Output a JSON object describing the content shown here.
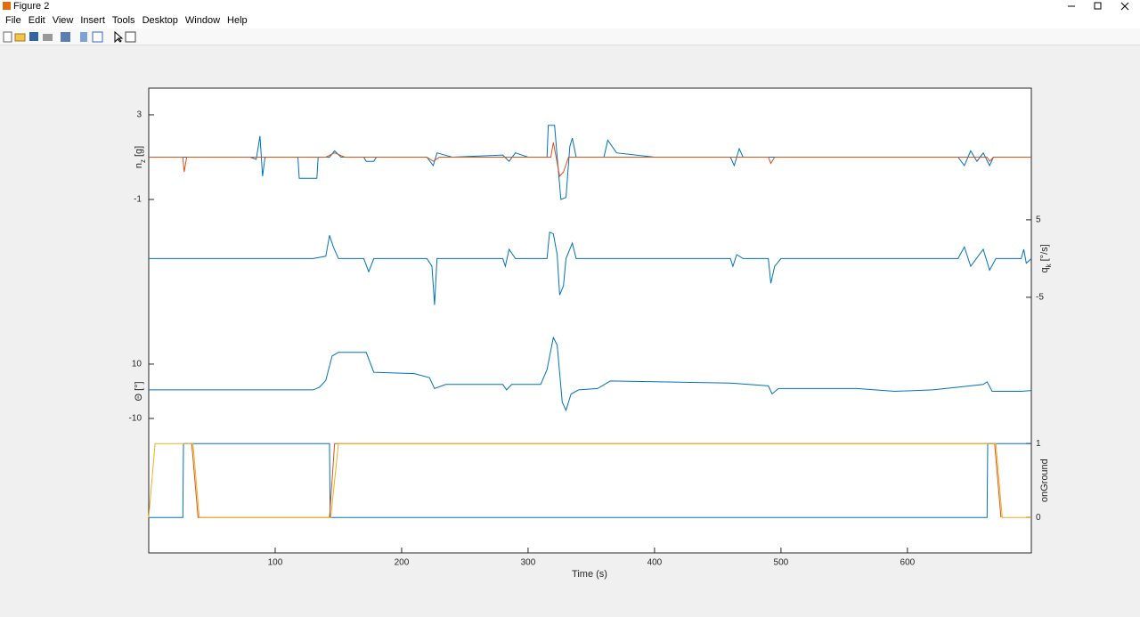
{
  "window": {
    "title": "Figure 2",
    "menu": [
      "File",
      "Edit",
      "View",
      "Insert",
      "Tools",
      "Desktop",
      "Window",
      "Help"
    ]
  },
  "chart_data": {
    "type": "line",
    "xlabel": "Time (s)",
    "xlim": [
      0,
      698
    ],
    "xticks": [
      100,
      200,
      300,
      400,
      500,
      600
    ],
    "tracks": [
      {
        "ylabel": {
          "text": "n",
          "sub": "z",
          "unit": "[g]"
        },
        "side": "left",
        "ylim": [
          -17.7,
          4.26
        ],
        "yticks": [
          -1,
          3
        ],
        "series": [
          {
            "color": "#0072bd",
            "x": [
              0,
              80,
              85,
              88,
              90,
              92,
              118,
              119,
              133,
              134,
              143,
              147,
              152,
              170,
              172,
              178,
              180,
              220,
              225,
              228,
              240,
              280,
              285,
              290,
              300,
              315,
              316,
              321,
              323,
              326,
              330,
              333,
              335,
              338,
              360,
              363,
              370,
              400,
              460,
              463,
              467,
              470,
              640,
              645,
              650,
              655,
              660,
              665,
              668,
              698
            ],
            "values": [
              1,
              1,
              0.9,
              2.0,
              0.1,
              1,
              1,
              0,
              0,
              1,
              1,
              1.3,
              1,
              1,
              0.8,
              0.8,
              1,
              1,
              0.6,
              1.2,
              1,
              1.1,
              0.8,
              1.2,
              1,
              1,
              2.5,
              2.5,
              1,
              -1,
              -0.9,
              1.5,
              1.9,
              1,
              1,
              1.8,
              1.2,
              1,
              1,
              0.6,
              1.4,
              1,
              1,
              0.6,
              1.3,
              0.8,
              1.2,
              0.6,
              1,
              1
            ]
          },
          {
            "color": "#d95319",
            "x": [
              0,
              27,
              28,
              30,
              140,
              147,
              155,
              220,
              225,
              230,
              318,
              320,
              325,
              328,
              332,
              490,
              492,
              495,
              640,
              663,
              665,
              668,
              698
            ],
            "values": [
              1,
              1,
              0.3,
              1,
              1,
              1.2,
              1,
              1,
              0.8,
              1,
              1,
              1.7,
              0.1,
              0.3,
              1,
              1,
              0.7,
              1,
              1,
              1,
              0.8,
              1,
              1
            ]
          }
        ]
      },
      {
        "ylabel": {
          "text": "q",
          "sub": "k",
          "unit": "[°/s]"
        },
        "side": "right",
        "ylim": [
          -38.0,
          22.0
        ],
        "yticks": [
          -5,
          5
        ],
        "series": [
          {
            "color": "#0072bd",
            "x": [
              0,
              130,
              140,
              143,
              146,
              150,
              170,
              174,
              178,
              220,
              224,
              226,
              228,
              280,
              282,
              285,
              290,
              315,
              317,
              320,
              323,
              325,
              328,
              330,
              335,
              338,
              460,
              462,
              465,
              470,
              490,
              492,
              495,
              500,
              640,
              645,
              650,
              660,
              665,
              670,
              690,
              692,
              694,
              698
            ],
            "values": [
              0,
              0,
              0.3,
              3,
              1.5,
              0,
              0,
              -1.7,
              0,
              0,
              -1,
              -6,
              0,
              0,
              -1,
              1.2,
              0,
              0,
              3.4,
              3.2,
              0.5,
              -4.7,
              -3.5,
              0,
              2,
              0,
              0,
              -1,
              0.5,
              0,
              0,
              -3.2,
              -1,
              0,
              0,
              1.5,
              -1,
              1.2,
              -1.5,
              0,
              0,
              1.2,
              -0.6,
              0
            ]
          }
        ]
      },
      {
        "ylabel": {
          "text": "Θ [°]"
        },
        "side": "left",
        "ylim": [
          -59.5,
          111.6
        ],
        "yticks": [
          -10,
          10
        ],
        "series": [
          {
            "color": "#0072bd",
            "x": [
              0,
              120,
              130,
              135,
              140,
              145,
              150,
              172,
              178,
              210,
              222,
              226,
              235,
              280,
              283,
              287,
              310,
              315,
              320,
              323,
              327,
              330,
              334,
              340,
              355,
              365,
              400,
              460,
              490,
              493,
              498,
              560,
              590,
              620,
              640,
              660,
              663,
              667,
              690,
              698
            ],
            "values": [
              0.5,
              0.5,
              0.5,
              1.5,
              4,
              13,
              14.3,
              14.3,
              7,
              6.5,
              5,
              1,
              2.5,
              2.5,
              0.5,
              2.5,
              2.5,
              8,
              19.8,
              17,
              -4,
              -7,
              -1,
              0.5,
              1,
              3.8,
              3.5,
              3,
              2,
              -1,
              1,
              1,
              0,
              0.5,
              1.5,
              2.5,
              3.5,
              0,
              0,
              0.3
            ]
          }
        ]
      },
      {
        "ylabel": {
          "text": "onGround"
        },
        "side": "right",
        "ylim": [
          -0.48,
          5.81
        ],
        "yticks": [
          0,
          1
        ],
        "series": [
          {
            "color": "#0072bd",
            "x": [
              0,
              27,
              27.5,
              143,
              143.5,
              663,
              663.5,
              698
            ],
            "values": [
              0,
              0,
              1,
              1,
              0,
              0,
              1,
              1
            ]
          },
          {
            "color": "#d95319",
            "x": [
              34,
              39,
              143,
              147,
              669,
              674
            ],
            "values": [
              1,
              0,
              0,
              1,
              1,
              0
            ]
          },
          {
            "color": "#edb120",
            "x": [
              0,
              5,
              35,
              40,
              144,
              150,
              670,
              675,
              698
            ],
            "values": [
              0,
              1,
              1,
              0,
              0,
              1,
              1,
              0,
              0
            ]
          }
        ]
      }
    ]
  }
}
